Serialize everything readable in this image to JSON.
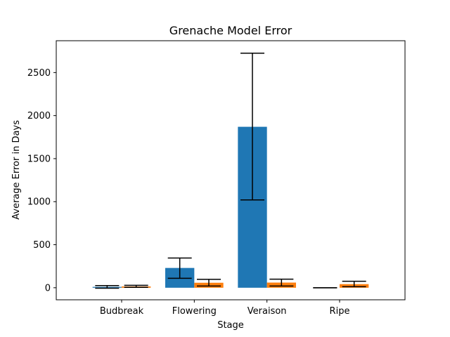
{
  "chart_data": {
    "type": "bar",
    "title": "Grenache Model Error",
    "xlabel": "Stage",
    "ylabel": "Average Error in Days",
    "categories": [
      "Budbreak",
      "Flowering",
      "Veraison",
      "Ripe"
    ],
    "ylim": [
      -140,
      2870
    ],
    "yticks": [
      0,
      500,
      1000,
      1500,
      2000,
      2500
    ],
    "grid": false,
    "legend": "none",
    "series": [
      {
        "color": "#1f77b4",
        "values": [
          10,
          230,
          1870,
          0
        ],
        "error_low": [
          -5,
          110,
          1020,
          0
        ],
        "error_high": [
          25,
          345,
          2725,
          0
        ]
      },
      {
        "color": "#ff7f0e",
        "values": [
          15,
          58,
          60,
          42
        ],
        "error_low": [
          5,
          20,
          20,
          12
        ],
        "error_high": [
          28,
          98,
          100,
          75
        ]
      }
    ]
  }
}
